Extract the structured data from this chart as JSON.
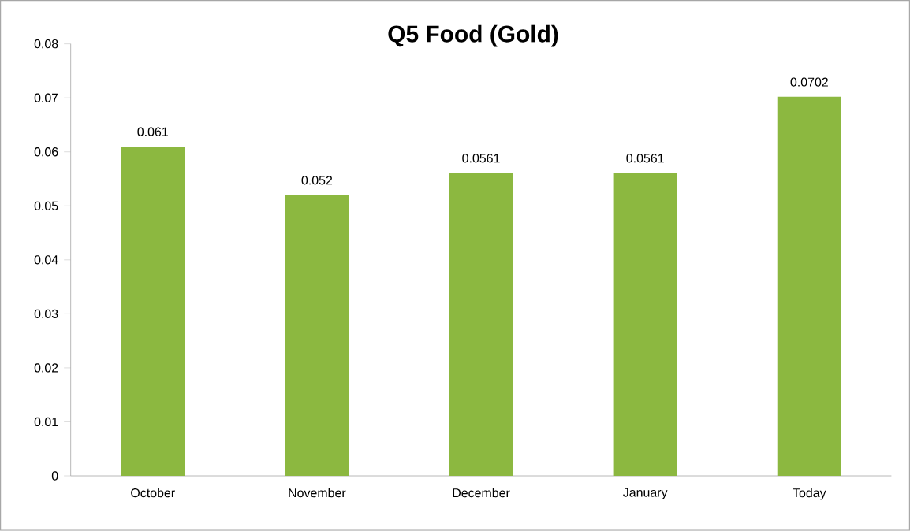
{
  "chart_data": {
    "type": "bar",
    "title": "Q5 Food (Gold)",
    "categories": [
      "October",
      "November",
      "December",
      "January",
      "Today"
    ],
    "values": [
      0.061,
      0.052,
      0.0561,
      0.0561,
      0.0702
    ],
    "color": "#8cb840",
    "ylim": [
      0,
      0.08
    ],
    "yticks": [
      0,
      0.01,
      0.02,
      0.03,
      0.04,
      0.05,
      0.06,
      0.07,
      0.08
    ],
    "data_labels": true
  }
}
